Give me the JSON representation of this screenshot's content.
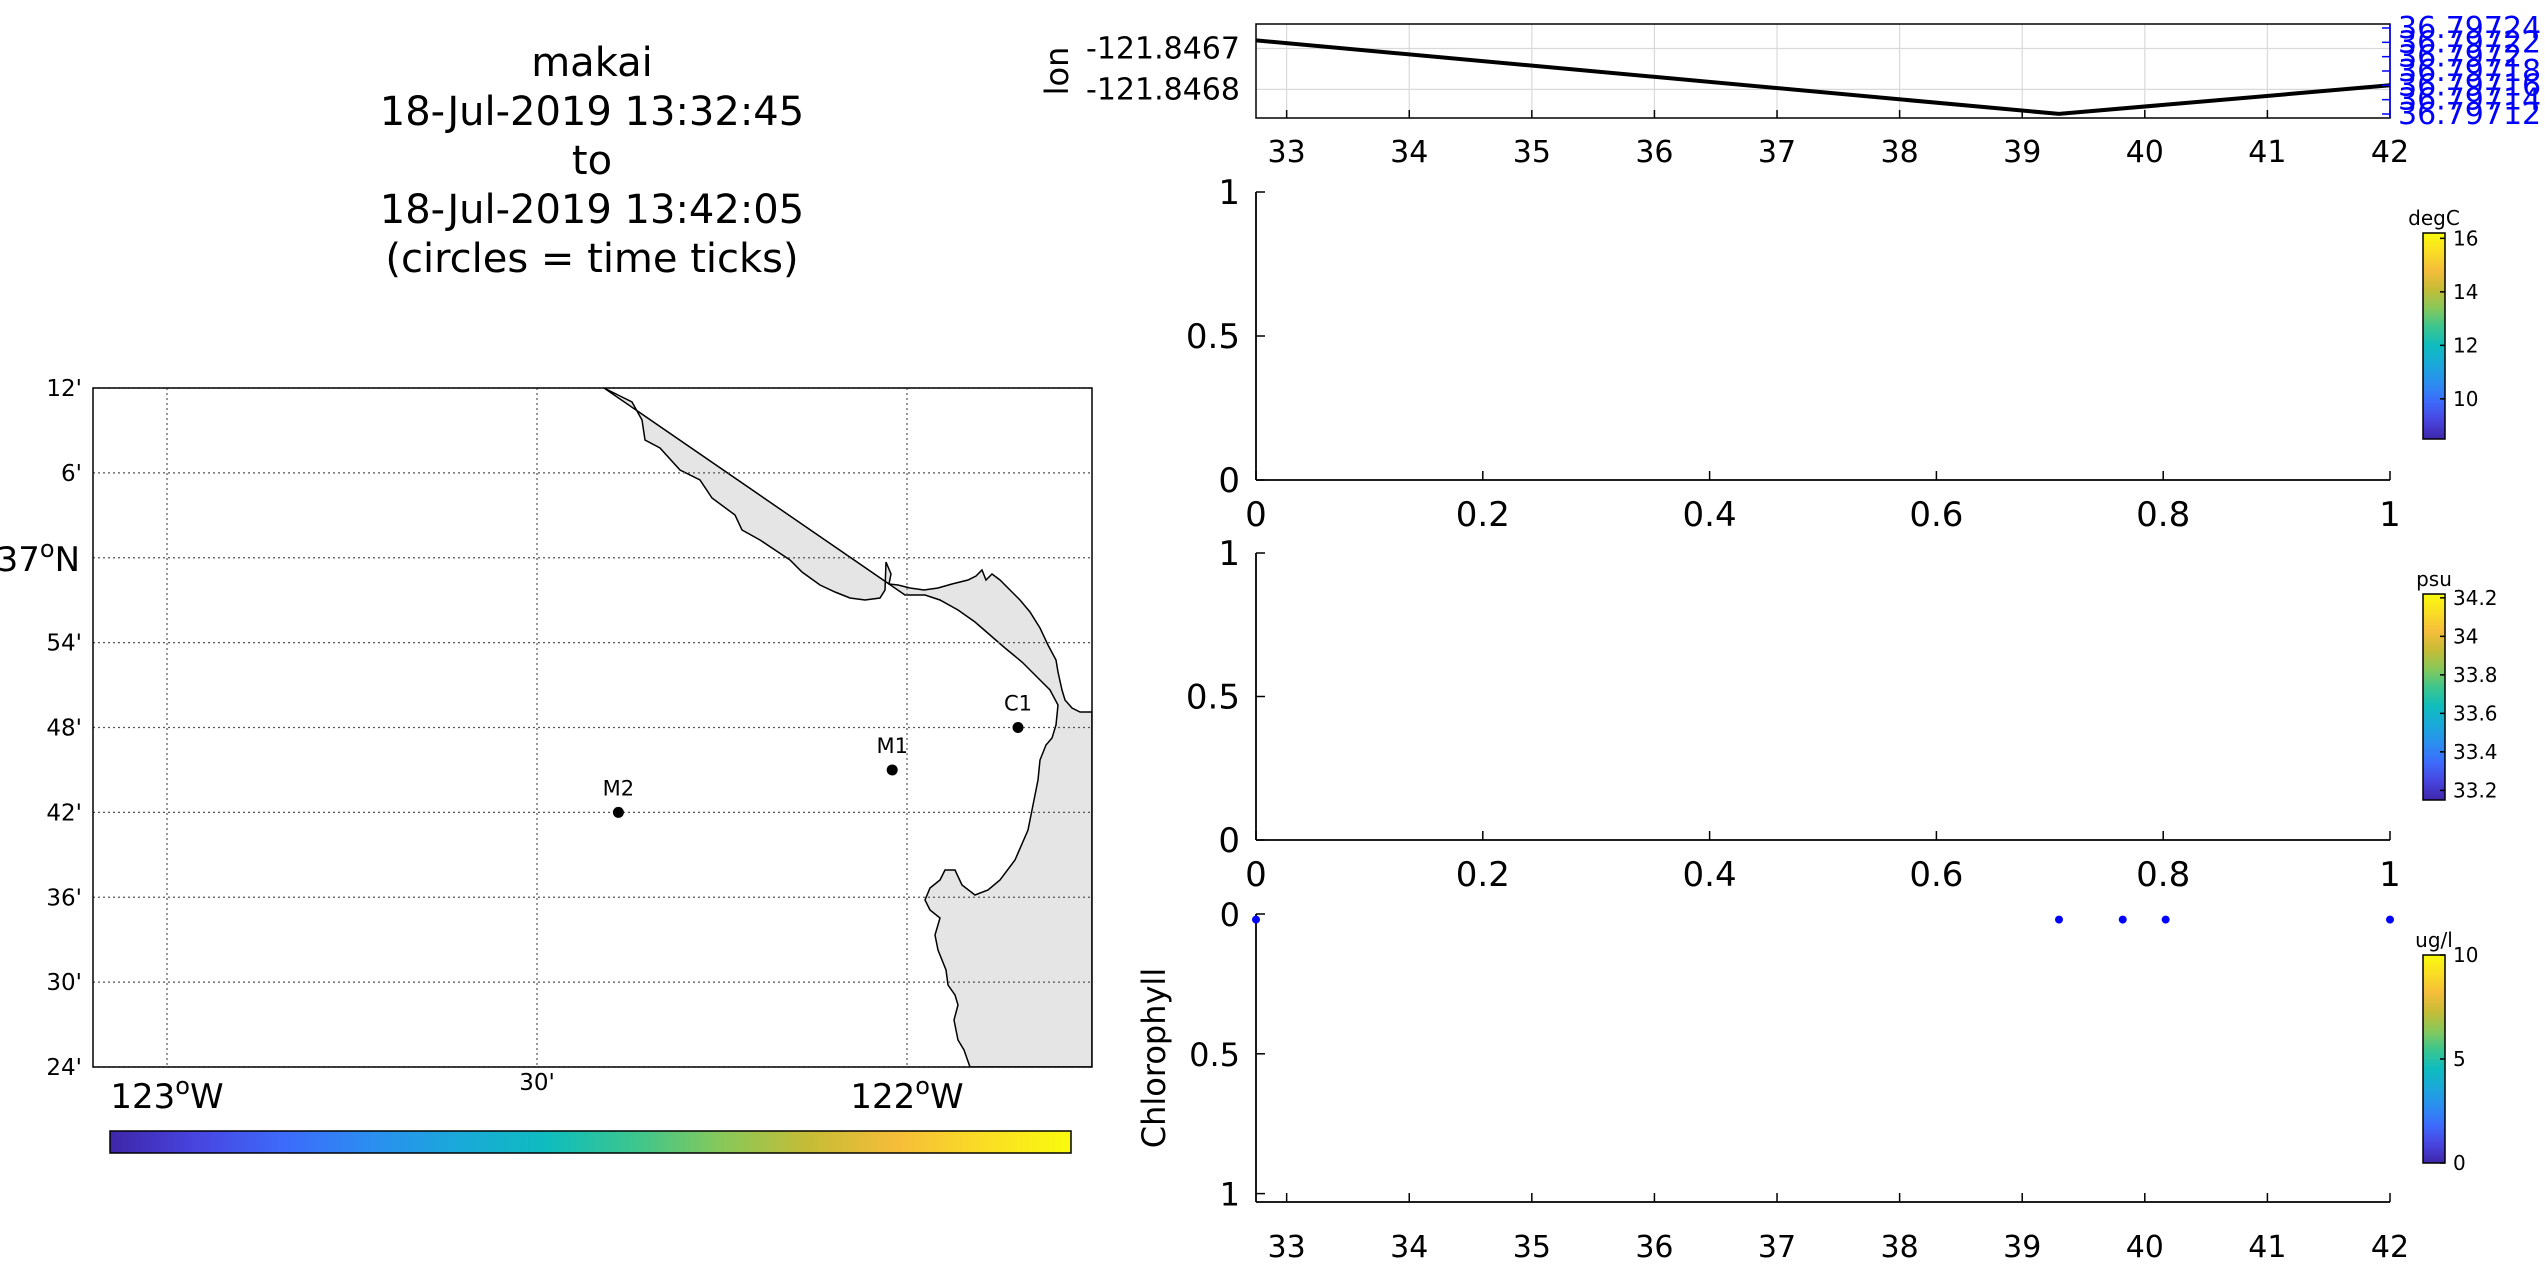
{
  "map": {
    "title_lines": [
      "makai",
      "18-Jul-2019 13:32:45",
      "to",
      "18-Jul-2019 13:42:05",
      "(circles = time ticks)"
    ],
    "lat_ticks": [
      {
        "value": 37.2,
        "label": "12'"
      },
      {
        "value": 37.1,
        "label": "6'"
      },
      {
        "value": 37.0,
        "label": "37",
        "sup": "o",
        "suffix": "N"
      },
      {
        "value": 36.9,
        "label": "54'"
      },
      {
        "value": 36.8,
        "label": "48'"
      },
      {
        "value": 36.7,
        "label": "42'"
      },
      {
        "value": 36.6,
        "label": "36'"
      },
      {
        "value": 36.5,
        "label": "30'"
      },
      {
        "value": 36.4,
        "label": "24'"
      }
    ],
    "lon_ticks": [
      {
        "value": -123.0,
        "label": "123",
        "sup": "o",
        "suffix": "W"
      },
      {
        "value": -122.5,
        "label": "30'"
      },
      {
        "value": -122.0,
        "label": "122",
        "sup": "o",
        "suffix": "W"
      }
    ],
    "lon_range": [
      -123.1,
      -121.75
    ],
    "lat_range": [
      36.4,
      37.2
    ],
    "stations": [
      {
        "name": "M2",
        "lon": -122.39,
        "lat": 36.7
      },
      {
        "name": "M1",
        "lon": -122.02,
        "lat": 36.75
      },
      {
        "name": "C1",
        "lon": -121.85,
        "lat": 36.8
      }
    ],
    "land_color": "#e5e5e5",
    "grid": true
  },
  "colors": {
    "parula": [
      "#3e26a8",
      "#4845e0",
      "#3d6bfb",
      "#2b8ef0",
      "#1aa9d9",
      "#0fbcbe",
      "#3cc68e",
      "#87c85a",
      "#c6bc36",
      "#f5bd3a",
      "#fadd25",
      "#f9fb0e"
    ],
    "track": "#000000",
    "lat_axis": "#0000ff",
    "chl_points": "#0000ff"
  },
  "chart_data": [
    {
      "type": "line",
      "name": "lon/lat track",
      "ylabel": "lon",
      "x": [
        32.75,
        39.3,
        42
      ],
      "y": [
        -121.84668,
        -121.84686,
        -121.84679
      ],
      "ylim": [
        -121.84687,
        -121.84664
      ],
      "yticks": [
        {
          "value": -121.8467,
          "label": "-121.8467"
        },
        {
          "value": -121.8468,
          "label": "-121.8468"
        }
      ],
      "xlim": [
        32.75,
        42
      ],
      "xticks": [
        33,
        34,
        35,
        36,
        37,
        38,
        39,
        40,
        41,
        42
      ],
      "right_axis_labels": [
        "36.79724",
        "36.79722",
        "36.7972",
        "36.79718",
        "36.79716",
        "36.79714",
        "36.79712"
      ],
      "grid": true
    },
    {
      "type": "scatter",
      "name": "temperature",
      "points": [],
      "xlim": [
        0,
        1
      ],
      "ylim": [
        0,
        1
      ],
      "xticks": [
        "0",
        "0.2",
        "0.4",
        "0.6",
        "0.8",
        "1"
      ],
      "yticks": [
        "0",
        "0.5",
        "1"
      ],
      "colorbar": {
        "unit": "degC",
        "range": [
          8.5,
          16.2
        ],
        "ticks": [
          10,
          12,
          14,
          16
        ]
      }
    },
    {
      "type": "scatter",
      "name": "salinity",
      "points": [],
      "xlim": [
        0,
        1
      ],
      "ylim": [
        0,
        1
      ],
      "xticks": [
        "0",
        "0.2",
        "0.4",
        "0.6",
        "0.8",
        "1"
      ],
      "yticks": [
        "0",
        "0.5",
        "1"
      ],
      "colorbar": {
        "unit": "psu",
        "range": [
          33.15,
          34.22
        ],
        "ticks": [
          33.2,
          33.4,
          33.6,
          33.8,
          34,
          34.2
        ]
      }
    },
    {
      "type": "scatter",
      "name": "chlorophyll",
      "ylabel": "Chlorophyll",
      "x": [
        32.75,
        39.3,
        39.82,
        40.17,
        42.0
      ],
      "y": [
        0.02,
        0.02,
        0.02,
        0.02,
        0.02
      ],
      "xlim": [
        32.75,
        42
      ],
      "ylim": [
        0,
        1.03
      ],
      "y_reversed": true,
      "xticks": [
        33,
        34,
        35,
        36,
        37,
        38,
        39,
        40,
        41,
        42
      ],
      "yticks": [
        "0",
        "0.5",
        "1"
      ],
      "colorbar": {
        "unit": "ug/l",
        "range": [
          0,
          10
        ],
        "ticks": [
          0,
          5,
          10
        ]
      }
    }
  ]
}
